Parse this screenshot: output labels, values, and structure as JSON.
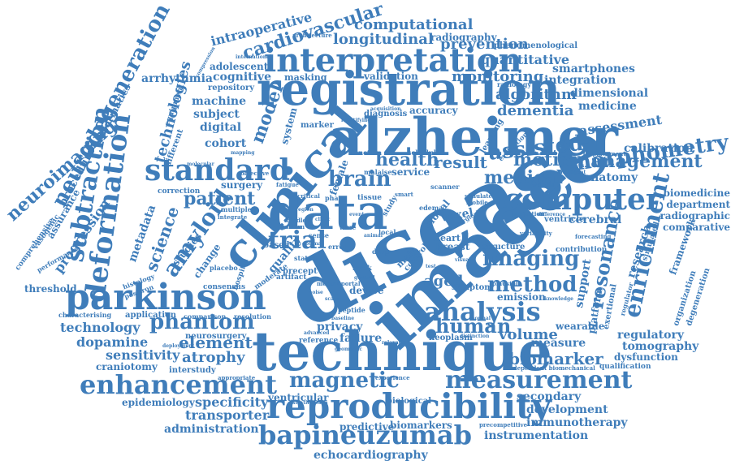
{
  "palette": {
    "word": "#3f7dba",
    "background": "#ffffff"
  },
  "words": {
    "disease": "disease",
    "image": "image",
    "technique": "technique",
    "alzheimer": "alzheimer",
    "registration": "registration",
    "clinical": "clinical",
    "data": "data",
    "interpretation": "interpretation",
    "parkinson": "parkinson",
    "reproducibility": "reproducibility",
    "bapineuzumab": "bapineuzumab",
    "enhancement": "enhancement",
    "measurement": "measurement",
    "computer": "computer",
    "standard": "standard",
    "analysis": "analysis",
    "deformation": "deformation",
    "neuroimaging": "neuroimaging",
    "neurodegeneration": "neurodegeneration",
    "subtraction": "subtraction",
    "amyloid": "amyloid",
    "morphometry": "morphometry",
    "enrichment": "enrichment",
    "resonance": "resonance",
    "management": "management",
    "method": "method",
    "imaging": "imaging",
    "trial": "trial",
    "brain": "brain",
    "phantom": "phantom",
    "patient": "patient",
    "magnetic": "magnetic",
    "human": "human",
    "biomarker": "biomarker",
    "medical": "medical",
    "motion": "motion",
    "health": "health",
    "result": "result",
    "assisted": "assisted",
    "cardiovascular": "cardiovascular",
    "longitudinal": "longitudinal",
    "computational": "computational",
    "prevention": "prevention",
    "quantitative": "quantitative",
    "monitoring": "monitoring",
    "algorithm": "algorithm",
    "dementia": "dementia",
    "technologies": "technologies",
    "model": "model",
    "science": "science",
    "volume": "volume",
    "technology": "technology",
    "dopamine": "dopamine",
    "element": "element",
    "atrophy": "atrophy",
    "sensitivity": "sensitivity",
    "specificity": "specificity",
    "transporter": "transporter",
    "administration": "administration",
    "epidemiology": "epidemiology",
    "echocardiography": "echocardiography",
    "instrumentation": "instrumentation",
    "immunotherapy": "immunotherapy",
    "development": "development",
    "secondary": "secondary",
    "tomography": "tomography",
    "regulatory": "regulatory",
    "dysfunction": "dysfunction",
    "measure": "measure",
    "wearable": "wearable",
    "research": "research",
    "framework": "framework",
    "cerebral": "cerebral",
    "ventricle": "ventricle",
    "anatomy": "anatomy",
    "calibration": "calibration",
    "assessment": "assessment",
    "medicine": "medicine",
    "dimensional": "dimensional",
    "integration": "integration",
    "smartphones": "smartphones",
    "radiography": "radiography",
    "phenomenological": "phenomenological",
    "intraoperative": "intraoperative",
    "adolescent": "adolescent",
    "cognitive": "cognitive",
    "validation": "validation",
    "machine": "machine",
    "subject": "subject",
    "digital": "digital",
    "cohort": "cohort",
    "surgery": "surgery",
    "quality": "quality",
    "privacy": "privacy",
    "failure": "failure",
    "aged": "aged",
    "voxel": "voxel",
    "breast": "breast",
    "support": "support",
    "platform": "platform",
    "biomedicine": "biomedicine",
    "department": "department",
    "radiographic": "radiographic",
    "comparative": "comparative",
    "degeneration": "degeneration",
    "organization": "organization",
    "simulated": "simulated",
    "exertional": "exertional",
    "accuracy": "accuracy",
    "repository": "repository",
    "arrhythmia": "arrhythmia",
    "informatics": "informatics",
    "procedure": "procedure",
    "assurance": "assurance",
    "progression": "progression",
    "metadata": "metadata",
    "studies": "studies",
    "threshold": "threshold",
    "craniotomy": "craniotomy",
    "interstudy": "interstudy",
    "neurosurgery": "neurosurgery",
    "application": "application",
    "characterising": "characterising",
    "ventricular": "ventricular",
    "biological": "biological",
    "predictive": "predictive",
    "biomarkers": "biomarkers",
    "neoplasm": "neoplasm",
    "reference": "reference",
    "emission": "emission",
    "structure": "structure",
    "symptom": "symptom",
    "contribution": "contribution",
    "global": "global",
    "heart": "heart",
    "male": "male",
    "control": "control",
    "female": "female",
    "service": "service",
    "diagnosis": "diagnosis",
    "marker": "marker",
    "function": "function",
    "schedule": "schedule",
    "masking": "masking",
    "system": "system",
    "change": "change",
    "correction": "correction",
    "different": "different",
    "equipment": "equipment",
    "comprehensive": "comprehensive",
    "vasogenic": "vasogenic",
    "performance": "performance",
    "learning": "learning",
    "evaluation": "evaluation",
    "displacement": "displacement",
    "forecasting": "forecasting",
    "variability": "variability",
    "projection": "projection",
    "radiology": "radiology",
    "architecture": "architecture",
    "international": "international",
    "qualification": "qualification",
    "independent_biomechanical": "independent biomechanical",
    "precompetitive": "precompetitive",
    "stratification": "stratification",
    "mental_portal": "mental portal",
    "tissue": "tissue",
    "scanner": "scanner",
    "edema": "edema",
    "phase": "phase",
    "smart": "smart",
    "study": "study",
    "local": "local",
    "error": "error",
    "sense": "sense",
    "based": "based",
    "precept": "precept",
    "artifact": "artifact",
    "device": "device",
    "peptide": "peptide",
    "comparison": "comparison",
    "resolution": "resolution",
    "appropriate": "appropriate",
    "experience": "experience",
    "hospital": "hospital",
    "moderate": "moderate",
    "consensus": "consensus",
    "placebo": "placebo",
    "histology": "histology",
    "positron": "positron",
    "multiple": "multiple",
    "integrate": "integrate",
    "objective": "objective",
    "fatigue": "fatigue",
    "malaise": "malaise",
    "middle": "middle",
    "pattern": "pattern",
    "mapping": "mapping",
    "simulate": "simulate",
    "mobile": "mobile",
    "mask": "mask",
    "drug": "drug",
    "time": "time",
    "status": "status",
    "plausible": "plausible",
    "knowledge": "knowledge",
    "regulator": "regulator",
    "intelligent": "intelligent",
    "difference": "difference",
    "identifying": "identifying",
    "acquisition": "acquisition",
    "compression": "compression",
    "deployment": "deployment",
    "surgical": "surgical",
    "critical": "critical",
    "molecular": "molecular",
    "baseline": "baseline",
    "advanced": "advanced",
    "geometric": "geometric",
    "relaxation": "relaxation",
    "distinction": "distinction",
    "clinic": "clinic",
    "event": "event",
    "optimal": "optimal",
    "region": "region",
    "animal": "animal",
    "general": "general",
    "noise": "noise",
    "scale": "scale",
    "visual": "visual",
    "normal": "normal",
    "protocol": "protocol",
    "test": "test"
  }
}
